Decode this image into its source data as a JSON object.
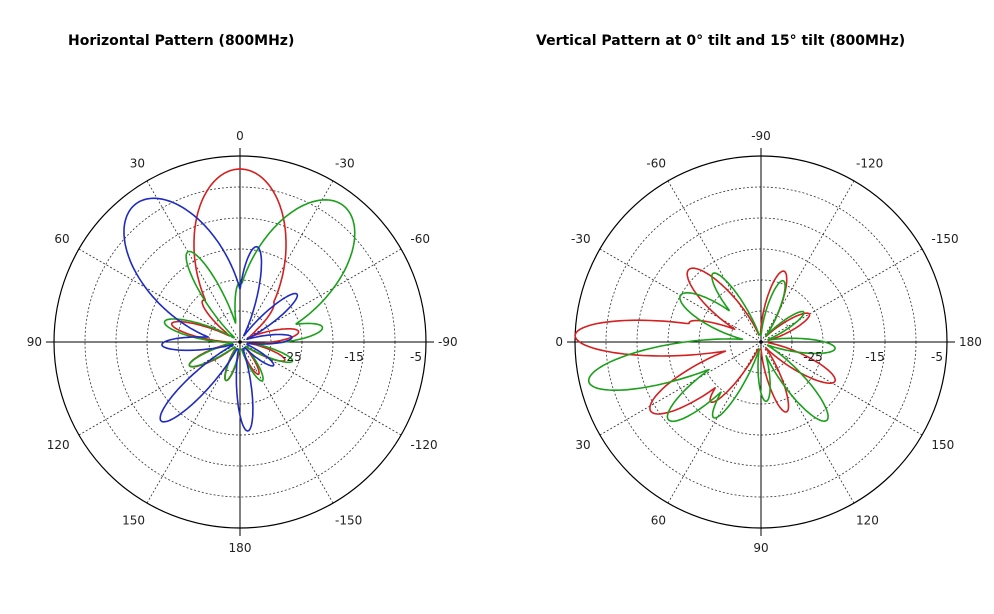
{
  "titles": {
    "horizontal": "Horizontal Pattern (800MHz)",
    "vertical": "Vertical Pattern at 0° tilt and 15° tilt (800MHz)"
  },
  "chart_data": [
    {
      "type": "polar",
      "title": "Horizontal Pattern (800MHz)",
      "radial_ticks": [
        "-25",
        "-15",
        "-5"
      ],
      "angle_labels": [
        {
          "text": "0",
          "angle": 0
        },
        {
          "text": "-30",
          "angle": 30
        },
        {
          "text": "-60",
          "angle": 60
        },
        {
          "text": "-90",
          "angle": 90
        },
        {
          "text": "-120",
          "angle": 120
        },
        {
          "text": "-150",
          "angle": 150
        },
        {
          "text": "180",
          "angle": 180
        },
        {
          "text": "150",
          "angle": 210
        },
        {
          "text": "120",
          "angle": 240
        },
        {
          "text": "90",
          "angle": 270
        },
        {
          "text": "60",
          "angle": 300
        },
        {
          "text": "30",
          "angle": 330
        }
      ],
      "grid": true,
      "series": [
        {
          "color": "#d42020",
          "lobes": [
            {
              "dir": 0,
              "amp": 0.93,
              "width": 26
            },
            {
              "dir": 40,
              "amp": 0.28,
              "width": 10
            },
            {
              "dir": 80,
              "amp": 0.32,
              "width": 9
            },
            {
              "dir": 112,
              "amp": 0.26,
              "width": 8
            },
            {
              "dir": 150,
              "amp": 0.2,
              "width": 8
            },
            {
              "dir": 200,
              "amp": 0.22,
              "width": 9
            },
            {
              "dir": 245,
              "amp": 0.3,
              "width": 9
            },
            {
              "dir": 285,
              "amp": 0.38,
              "width": 8
            },
            {
              "dir": 318,
              "amp": 0.3,
              "width": 9
            }
          ]
        },
        {
          "color": "#1aa01a",
          "lobes": [
            {
              "dir": 37,
              "amp": 0.92,
              "width": 24
            },
            {
              "dir": 80,
              "amp": 0.45,
              "width": 9
            },
            {
              "dir": 110,
              "amp": 0.3,
              "width": 8
            },
            {
              "dir": 150,
              "amp": 0.24,
              "width": 9
            },
            {
              "dir": 200,
              "amp": 0.22,
              "width": 8
            },
            {
              "dir": 245,
              "amp": 0.3,
              "width": 8
            },
            {
              "dir": 285,
              "amp": 0.42,
              "width": 9
            },
            {
              "dir": 330,
              "amp": 0.56,
              "width": 9
            },
            {
              "dir": 0,
              "amp": 0.32,
              "width": 8
            }
          ]
        },
        {
          "color": "#1f2bc0",
          "lobes": [
            {
              "dir": 323,
              "amp": 0.93,
              "width": 24
            },
            {
              "dir": 10,
              "amp": 0.52,
              "width": 9
            },
            {
              "dir": 50,
              "amp": 0.4,
              "width": 8
            },
            {
              "dir": 85,
              "amp": 0.28,
              "width": 8
            },
            {
              "dir": 125,
              "amp": 0.22,
              "width": 8
            },
            {
              "dir": 175,
              "amp": 0.48,
              "width": 8
            },
            {
              "dir": 225,
              "amp": 0.6,
              "width": 9
            },
            {
              "dir": 268,
              "amp": 0.42,
              "width": 8
            }
          ]
        }
      ]
    },
    {
      "type": "polar",
      "title": "Vertical Pattern at 0° tilt and 15° tilt (800MHz)",
      "radial_ticks": [
        "-25",
        "-15",
        "-5"
      ],
      "angle_labels": [
        {
          "text": "-90",
          "angle": 0
        },
        {
          "text": "-120",
          "angle": 30
        },
        {
          "text": "-150",
          "angle": 60
        },
        {
          "text": "180",
          "angle": 90
        },
        {
          "text": "150",
          "angle": 120
        },
        {
          "text": "120",
          "angle": 150
        },
        {
          "text": "90",
          "angle": 180
        },
        {
          "text": "60",
          "angle": 210
        },
        {
          "text": "30",
          "angle": 240
        },
        {
          "text": "0",
          "angle": 270
        },
        {
          "text": "-30",
          "angle": 300
        },
        {
          "text": "-60",
          "angle": 330
        }
      ],
      "grid": true,
      "series": [
        {
          "color": "#d42020",
          "lobes": [
            {
              "dir": 272,
              "amp": 1.0,
              "width": 9
            },
            {
              "dir": 238,
              "amp": 0.7,
              "width": 11
            },
            {
              "dir": 220,
              "amp": 0.42,
              "width": 8
            },
            {
              "dir": 315,
              "amp": 0.55,
              "width": 12
            },
            {
              "dir": 285,
              "amp": 0.4,
              "width": 8
            },
            {
              "dir": 18,
              "amp": 0.4,
              "width": 10
            },
            {
              "dir": 60,
              "amp": 0.3,
              "width": 9
            },
            {
              "dir": 118,
              "amp": 0.45,
              "width": 10
            },
            {
              "dir": 160,
              "amp": 0.4,
              "width": 9
            }
          ]
        },
        {
          "color": "#1aa01a",
          "lobes": [
            {
              "dir": 257,
              "amp": 0.95,
              "width": 10
            },
            {
              "dir": 230,
              "amp": 0.65,
              "width": 10
            },
            {
              "dir": 212,
              "amp": 0.48,
              "width": 8
            },
            {
              "dir": 300,
              "amp": 0.5,
              "width": 12
            },
            {
              "dir": 325,
              "amp": 0.45,
              "width": 9
            },
            {
              "dir": 20,
              "amp": 0.35,
              "width": 9
            },
            {
              "dir": 55,
              "amp": 0.28,
              "width": 8
            },
            {
              "dir": 95,
              "amp": 0.4,
              "width": 9
            },
            {
              "dir": 140,
              "amp": 0.55,
              "width": 10
            },
            {
              "dir": 175,
              "amp": 0.32,
              "width": 9
            }
          ]
        }
      ]
    }
  ]
}
